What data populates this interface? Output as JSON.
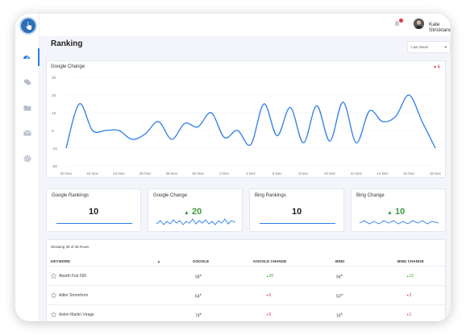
{
  "user": {
    "name": "Kate Strickland"
  },
  "page": {
    "title": "Ranking"
  },
  "range_select": {
    "value": "Last Week"
  },
  "google_change_chart": {
    "title": "Google Change",
    "change": "6",
    "chart_data": {
      "type": "line",
      "title": "Google Change",
      "xlabel": "",
      "ylabel": "",
      "ylim": [
        -20,
        30
      ],
      "yticks": [
        30,
        20,
        10,
        0,
        -10,
        -20
      ],
      "xticks": [
        "20 Nov",
        "22 Nov",
        "24 Nov",
        "26 Nov",
        "28 Nov",
        "30 Nov",
        "2 Dec",
        "4 Dec",
        "6 Dec",
        "8 Dec",
        "10 Dec",
        "12 Dec",
        "14 Dec",
        "16 Dec",
        "18 Dec"
      ],
      "grid": true,
      "series": [
        {
          "color": "#2b7de9",
          "x": [
            0,
            1,
            2,
            3,
            4,
            5,
            6,
            7,
            8,
            9,
            10,
            11,
            12,
            13,
            14,
            15,
            16,
            17,
            18,
            19,
            20,
            21,
            22,
            23,
            24,
            25,
            26,
            27,
            28
          ],
          "values": [
            -10,
            15,
            0,
            0,
            0,
            -5,
            -2,
            5,
            -5,
            4,
            2,
            10,
            -4,
            0,
            -8,
            15,
            -3,
            13,
            -7,
            14,
            -6,
            16,
            -7,
            11,
            5,
            8,
            20,
            5,
            -10
          ]
        }
      ]
    }
  },
  "mini_cards": [
    {
      "title": "Google Rankings",
      "value": "10",
      "trend": "none"
    },
    {
      "title": "Google Change",
      "value": "20",
      "trend": "up"
    },
    {
      "title": "Bing Rankings",
      "value": "10",
      "trend": "none"
    },
    {
      "title": "Bing Change",
      "value": "10",
      "trend": "up"
    }
  ],
  "table": {
    "count_label": "Showing 35 of 35 Rows",
    "columns": [
      "KEYWORD",
      "GOOGLE",
      "GOOGLE CHANGE",
      "BING",
      "BING CHANGE"
    ],
    "rows": [
      {
        "keyword": "Abarth Fiat 595",
        "google": "58",
        "google_sup": "th",
        "google_change": "20",
        "google_dir": "up",
        "bing": "94",
        "bing_sup": "th",
        "bing_change": "12",
        "bing_dir": "up"
      },
      {
        "keyword": "Adler Stromform",
        "google": "64",
        "google_sup": "th",
        "google_change": "6",
        "google_dir": "down",
        "bing": "53",
        "bing_sup": "rd",
        "bing_change": "3",
        "bing_dir": "down"
      },
      {
        "keyword": "Aston Martin Virage",
        "google": "74",
        "google_sup": "th",
        "google_change": "5",
        "google_dir": "down",
        "bing": "16",
        "bing_sup": "th",
        "bing_change": "1",
        "bing_dir": "down"
      }
    ]
  }
}
